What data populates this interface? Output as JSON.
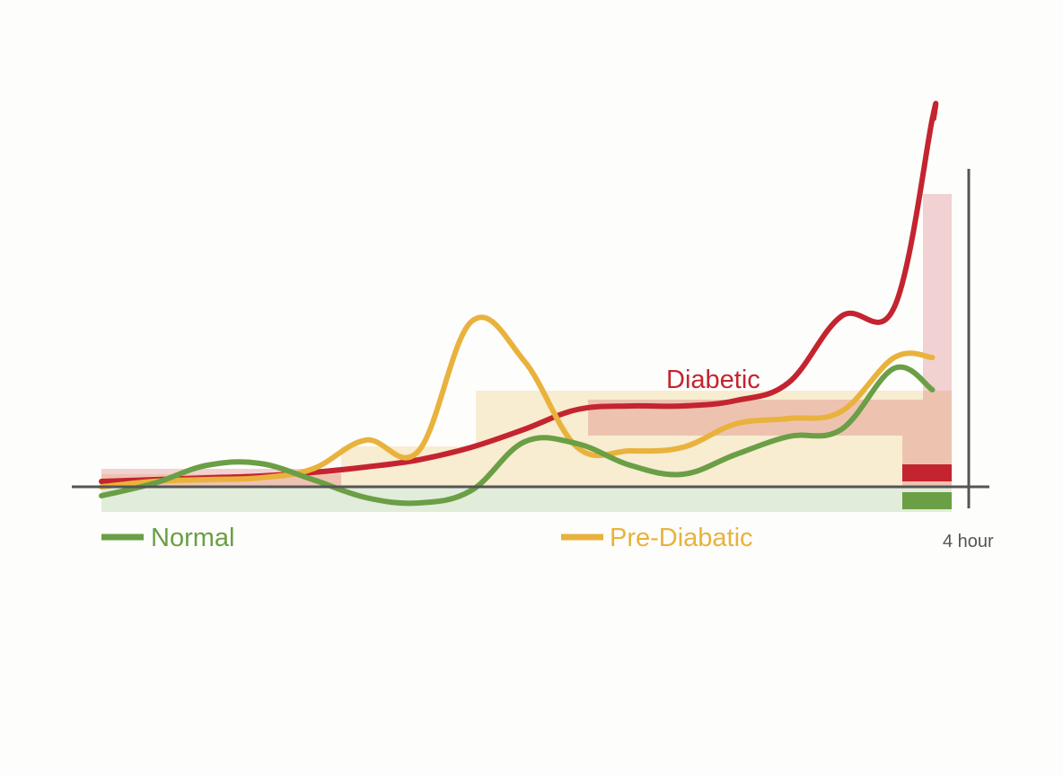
{
  "chart_data": {
    "type": "line",
    "x_end_label": "4 hour",
    "colors": {
      "Normal": "#6a9f45",
      "Pre-Diabatic": "#e9b23c",
      "Diabetic": "#c4242f"
    },
    "series": [
      {
        "name": "Normal",
        "x": [
          0,
          0.25,
          0.5,
          0.75,
          1.0,
          1.25,
          1.5,
          1.75,
          2.0,
          2.25,
          2.5,
          2.75,
          3.0,
          3.25,
          3.5,
          3.75,
          3.93,
          4.0
        ],
        "y": [
          -0.5,
          0.2,
          1.2,
          1.3,
          0.4,
          -0.6,
          -0.9,
          -0.2,
          2.5,
          2.4,
          1.2,
          0.7,
          1.8,
          2.8,
          3.2,
          6.6,
          5.4,
          5.4
        ]
      },
      {
        "name": "Pre-Diabatic",
        "x": [
          0,
          0.25,
          0.5,
          0.75,
          1.0,
          1.25,
          1.5,
          1.75,
          2.0,
          2.25,
          2.5,
          2.75,
          3.0,
          3.25,
          3.5,
          3.75,
          3.93,
          4.0
        ],
        "y": [
          0,
          0.3,
          0.4,
          0.5,
          1.0,
          2.6,
          2.0,
          9.2,
          7.0,
          2.2,
          2.0,
          2.2,
          3.5,
          3.8,
          4.2,
          7.2,
          7.2,
          7.2
        ]
      },
      {
        "name": "Diabetic",
        "x": [
          0,
          0.25,
          0.5,
          0.75,
          1.0,
          1.25,
          1.5,
          1.75,
          2.0,
          2.25,
          2.5,
          2.75,
          3.0,
          3.25,
          3.5,
          3.75,
          3.93,
          4.0
        ],
        "y": [
          0.3,
          0.4,
          0.5,
          0.6,
          0.8,
          1.1,
          1.5,
          2.2,
          3.2,
          4.3,
          4.5,
          4.5,
          4.8,
          5.8,
          9.5,
          10.0,
          20.5,
          20.5
        ]
      }
    ]
  },
  "labels": {
    "normal": "Normal",
    "pre_diabetic": "Pre-Diabatic",
    "diabetic": "Diabetic",
    "x_end": "4 hour"
  }
}
